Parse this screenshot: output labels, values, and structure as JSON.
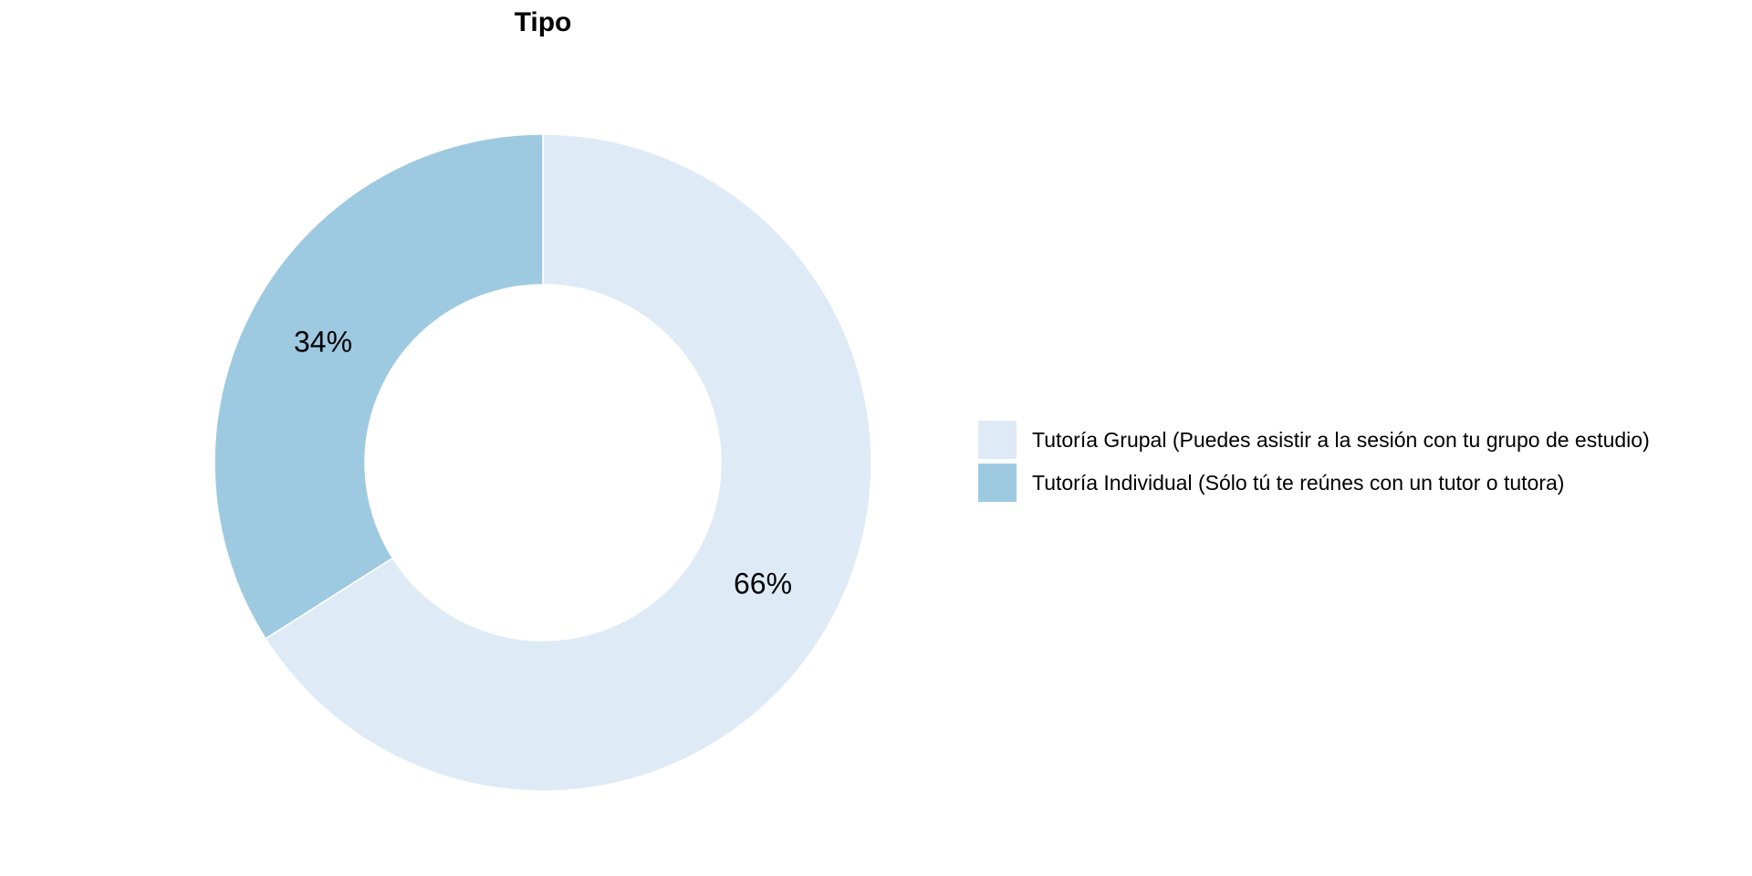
{
  "chart_data": {
    "type": "pie",
    "donut": true,
    "title": "Tipo",
    "categories": [
      "Tutoría Grupal (Puedes asistir a la sesión con tu grupo de estudio)",
      "Tutoría Individual (Sólo tú te reúnes con un tutor o tutora)"
    ],
    "values": [
      66,
      34
    ],
    "data_labels": [
      "66%",
      "34%"
    ],
    "colors": [
      "#deebf7",
      "#9ecae1"
    ],
    "legend_position": "right",
    "unit": "%"
  }
}
